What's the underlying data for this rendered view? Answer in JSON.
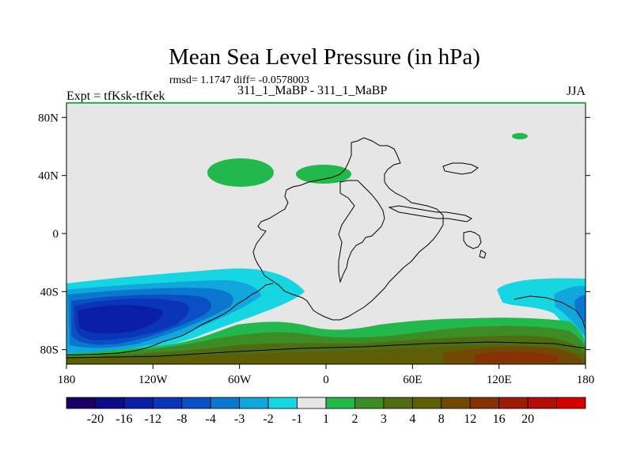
{
  "chart_data": {
    "type": "heatmap",
    "title": "Mean Sea Level Pressure (in hPa)",
    "stats_line": "rmsd= 1.1747 diff= -0.0578003",
    "experiment_label": "Expt = tfKsk-tfKek",
    "subtitle": "311_1_MaBP - 311_1_MaBP",
    "season": "JJA",
    "x_range": [
      -180,
      180
    ],
    "y_range": [
      -90,
      90
    ],
    "x_ticks": [
      {
        "value": -180,
        "label": "180"
      },
      {
        "value": -120,
        "label": "120W"
      },
      {
        "value": -60,
        "label": "60W"
      },
      {
        "value": 0,
        "label": "0"
      },
      {
        "value": 60,
        "label": "60E"
      },
      {
        "value": 120,
        "label": "120E"
      },
      {
        "value": 180,
        "label": "180"
      }
    ],
    "y_ticks": [
      {
        "value": 80,
        "label": "80N"
      },
      {
        "value": 40,
        "label": "40N"
      },
      {
        "value": 0,
        "label": "0"
      },
      {
        "value": -40,
        "label": "40S"
      },
      {
        "value": -80,
        "label": "80S"
      }
    ],
    "colorbar": {
      "colors": [
        "#1a0063",
        "#0c0a87",
        "#0a1fa5",
        "#0a35b8",
        "#0b4fc4",
        "#0a78cf",
        "#11a6dc",
        "#16d6e2",
        "#e6e6e6",
        "#22b84b",
        "#3c8b24",
        "#4f6c12",
        "#5e5e06",
        "#724805",
        "#873206",
        "#9c1c06",
        "#b30d05",
        "#d40000"
      ],
      "labels": [
        "-20",
        "-16",
        "-12",
        "-8",
        "-4",
        "-3",
        "-2",
        "-1",
        "1",
        "2",
        "3",
        "4",
        "8",
        "12",
        "16",
        "20"
      ]
    },
    "regions": [
      {
        "name": "Southern Hemisphere negative anomaly band (Pacific)",
        "range": "-1 to -16 hPa"
      },
      {
        "name": "Southern Hemisphere negative anomaly band (east Indian Ocean)",
        "range": "-1 to -3 hPa"
      },
      {
        "name": "North Atlantic positive anomaly",
        "range": "1 to 2 hPa"
      },
      {
        "name": "Europe positive anomaly",
        "range": "1 to 2 hPa"
      },
      {
        "name": "Arctic positive anomaly",
        "range": "1 to 2 hPa"
      },
      {
        "name": "Antarctic positive anomaly",
        "range": "1 to 12 hPa"
      }
    ]
  }
}
